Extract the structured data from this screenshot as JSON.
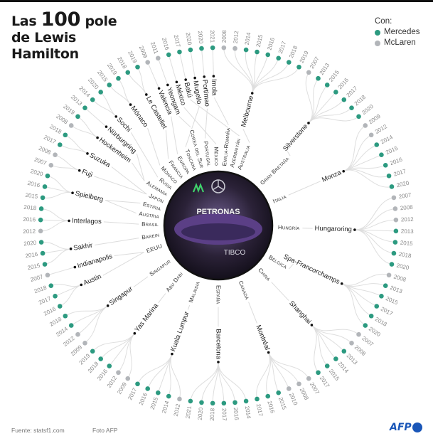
{
  "title": {
    "pre": "Las ",
    "number": "100",
    "post": " pole",
    "line2": "de Lewis",
    "line3": "Hamilton"
  },
  "legend": {
    "heading": "Con:",
    "items": [
      {
        "label": "Mercedes",
        "color": "#2c9a80"
      },
      {
        "label": "McLaren",
        "color": "#b2b5b9"
      }
    ]
  },
  "photo": {
    "sponsor1": "PETRONAS",
    "sponsor2": "TIBCO"
  },
  "footer": {
    "source": "Fuente: statsf1.com",
    "photo_credit": "Foto AFP",
    "logo": "AFP"
  },
  "circuits": [
    {
      "name": "Melbourne",
      "years": [
        {
          "y": "2008",
          "t": "McLaren"
        },
        {
          "y": "2012",
          "t": "McLaren"
        },
        {
          "y": "2014",
          "t": "Mercedes"
        },
        {
          "y": "2015",
          "t": "Mercedes"
        },
        {
          "y": "2016",
          "t": "Mercedes"
        },
        {
          "y": "2017",
          "t": "Mercedes"
        },
        {
          "y": "2018",
          "t": "Mercedes"
        },
        {
          "y": "2019",
          "t": "Mercedes"
        }
      ]
    },
    {
      "name": "Silverstone",
      "years": [
        {
          "y": "2007",
          "t": "McLaren"
        },
        {
          "y": "2013",
          "t": "Mercedes"
        },
        {
          "y": "2015",
          "t": "Mercedes"
        },
        {
          "y": "2016",
          "t": "Mercedes"
        },
        {
          "y": "2017",
          "t": "Mercedes"
        },
        {
          "y": "2018",
          "t": "Mercedes"
        },
        {
          "y": "2020",
          "t": "Mercedes"
        }
      ]
    },
    {
      "name": "Monza",
      "years": [
        {
          "y": "2009",
          "t": "McLaren"
        },
        {
          "y": "2012",
          "t": "McLaren"
        },
        {
          "y": "2014",
          "t": "Mercedes"
        },
        {
          "y": "2015",
          "t": "Mercedes"
        },
        {
          "y": "2016",
          "t": "Mercedes"
        },
        {
          "y": "2017",
          "t": "Mercedes"
        },
        {
          "y": "2020",
          "t": "Mercedes"
        }
      ]
    },
    {
      "name": "Hungaroring",
      "years": [
        {
          "y": "2007",
          "t": "McLaren"
        },
        {
          "y": "2008",
          "t": "McLaren"
        },
        {
          "y": "2012",
          "t": "McLaren"
        },
        {
          "y": "2013",
          "t": "Mercedes"
        },
        {
          "y": "2015",
          "t": "Mercedes"
        },
        {
          "y": "2018",
          "t": "Mercedes"
        },
        {
          "y": "2020",
          "t": "Mercedes"
        }
      ]
    },
    {
      "name": "Spa-Francorchamps",
      "years": [
        {
          "y": "2008",
          "t": "McLaren"
        },
        {
          "y": "2013",
          "t": "Mercedes"
        },
        {
          "y": "2015",
          "t": "Mercedes"
        },
        {
          "y": "2017",
          "t": "Mercedes"
        },
        {
          "y": "2018",
          "t": "Mercedes"
        },
        {
          "y": "2020",
          "t": "Mercedes"
        }
      ]
    },
    {
      "name": "Shanghai",
      "years": [
        {
          "y": "2007",
          "t": "McLaren"
        },
        {
          "y": "2008",
          "t": "McLaren"
        },
        {
          "y": "2013",
          "t": "Mercedes"
        },
        {
          "y": "2014",
          "t": "Mercedes"
        },
        {
          "y": "2015",
          "t": "Mercedes"
        },
        {
          "y": "2017",
          "t": "Mercedes"
        }
      ]
    },
    {
      "name": "Montréal",
      "years": [
        {
          "y": "2007",
          "t": "McLaren"
        },
        {
          "y": "2008",
          "t": "McLaren"
        },
        {
          "y": "2010",
          "t": "McLaren"
        },
        {
          "y": "2015",
          "t": "Mercedes"
        },
        {
          "y": "2016",
          "t": "Mercedes"
        },
        {
          "y": "2017",
          "t": "Mercedes"
        }
      ]
    },
    {
      "name": "Barcelona",
      "years": [
        {
          "y": "2014",
          "t": "Mercedes"
        },
        {
          "y": "2016",
          "t": "Mercedes"
        },
        {
          "y": "2017",
          "t": "Mercedes"
        },
        {
          "y": "2018",
          "t": "Mercedes"
        },
        {
          "y": "2020",
          "t": "Mercedes"
        },
        {
          "y": "2021",
          "t": "Mercedes"
        }
      ]
    },
    {
      "name": "Kuala Lumpur",
      "years": [
        {
          "y": "2012",
          "t": "McLaren"
        },
        {
          "y": "2014",
          "t": "Mercedes"
        },
        {
          "y": "2015",
          "t": "Mercedes"
        },
        {
          "y": "2016",
          "t": "Mercedes"
        },
        {
          "y": "2017",
          "t": "Mercedes"
        }
      ]
    },
    {
      "name": "Yas Marina",
      "years": [
        {
          "y": "2009",
          "t": "McLaren"
        },
        {
          "y": "2012",
          "t": "McLaren"
        },
        {
          "y": "2016",
          "t": "Mercedes"
        },
        {
          "y": "2018",
          "t": "Mercedes"
        },
        {
          "y": "2019",
          "t": "Mercedes"
        }
      ]
    },
    {
      "name": "Singapur",
      "years": [
        {
          "y": "2009",
          "t": "McLaren"
        },
        {
          "y": "2012",
          "t": "McLaren"
        },
        {
          "y": "2014",
          "t": "Mercedes"
        },
        {
          "y": "2018",
          "t": "Mercedes"
        }
      ]
    },
    {
      "name": "Austin",
      "years": [
        {
          "y": "2016",
          "t": "Mercedes"
        },
        {
          "y": "2017",
          "t": "Mercedes"
        },
        {
          "y": "2018",
          "t": "Mercedes"
        }
      ]
    },
    {
      "name": "Indianapolis",
      "years": [
        {
          "y": "2007",
          "t": "McLaren"
        }
      ]
    },
    {
      "name": "Sakhir",
      "years": [
        {
          "y": "2015",
          "t": "Mercedes"
        },
        {
          "y": "2016",
          "t": "Mercedes"
        },
        {
          "y": "2020",
          "t": "Mercedes"
        }
      ]
    },
    {
      "name": "Interlagos",
      "years": [
        {
          "y": "2012",
          "t": "McLaren"
        },
        {
          "y": "2016",
          "t": "Mercedes"
        },
        {
          "y": "2018",
          "t": "Mercedes"
        }
      ]
    },
    {
      "name": "Spielberg",
      "years": [
        {
          "y": "2015",
          "t": "Mercedes"
        },
        {
          "y": "2016",
          "t": "Mercedes"
        },
        {
          "y": "2020",
          "t": "Mercedes"
        }
      ]
    },
    {
      "name": "Fuji",
      "years": [
        {
          "y": "2007",
          "t": "McLaren"
        },
        {
          "y": "2008",
          "t": "McLaren"
        }
      ]
    },
    {
      "name": "Suzuka",
      "years": [
        {
          "y": "2017",
          "t": "Mercedes"
        },
        {
          "y": "2018",
          "t": "Mercedes"
        }
      ]
    },
    {
      "name": "Hockenheim",
      "years": [
        {
          "y": "2008",
          "t": "McLaren"
        },
        {
          "y": "2019",
          "t": "Mercedes"
        }
      ]
    },
    {
      "name": "Nürburgring",
      "years": [
        {
          "y": "2013",
          "t": "Mercedes"
        }
      ]
    },
    {
      "name": "Sochi",
      "years": [
        {
          "y": "2014",
          "t": "Mercedes"
        },
        {
          "y": "2020",
          "t": "Mercedes"
        }
      ]
    },
    {
      "name": "Mónaco",
      "years": [
        {
          "y": "2015",
          "t": "Mercedes"
        },
        {
          "y": "2019",
          "t": "Mercedes"
        }
      ]
    },
    {
      "name": "Le Castellet",
      "years": [
        {
          "y": "2018",
          "t": "Mercedes"
        },
        {
          "y": "2019",
          "t": "Mercedes"
        }
      ]
    },
    {
      "name": "Valencia",
      "years": [
        {
          "y": "2009",
          "t": "McLaren"
        }
      ]
    },
    {
      "name": "Yeongam",
      "years": [
        {
          "y": "2011",
          "t": "McLaren"
        }
      ]
    },
    {
      "name": "México",
      "years": [
        {
          "y": "2016",
          "t": "Mercedes"
        }
      ]
    },
    {
      "name": "Bakú",
      "years": [
        {
          "y": "2017",
          "t": "Mercedes"
        }
      ]
    },
    {
      "name": "Mugello",
      "years": [
        {
          "y": "2020",
          "t": "Mercedes"
        }
      ]
    },
    {
      "name": "Portimao",
      "years": [
        {
          "y": "2020",
          "t": "Mercedes"
        }
      ]
    },
    {
      "name": "Imola",
      "years": [
        {
          "y": "2021",
          "t": "Mercedes"
        }
      ]
    }
  ],
  "countries": [
    {
      "name": "Australia",
      "circuits": [
        0
      ]
    },
    {
      "name": "Gran Bretaña",
      "circuits": [
        1
      ]
    },
    {
      "name": "Italia",
      "circuits": [
        2
      ]
    },
    {
      "name": "Hungría",
      "circuits": [
        3
      ]
    },
    {
      "name": "Bélgica",
      "circuits": [
        4
      ]
    },
    {
      "name": "China",
      "circuits": [
        5
      ]
    },
    {
      "name": "Canadá",
      "circuits": [
        6
      ]
    },
    {
      "name": "España",
      "circuits": [
        7
      ]
    },
    {
      "name": "Malaisia",
      "circuits": [
        8
      ]
    },
    {
      "name": "Abu Dabi",
      "circuits": [
        9
      ]
    },
    {
      "name": "Singapur",
      "circuits": [
        10
      ]
    },
    {
      "name": "EEUU",
      "circuits": [
        11,
        12
      ]
    },
    {
      "name": "Barein",
      "circuits": [
        13
      ]
    },
    {
      "name": "Brasil",
      "circuits": [
        14
      ]
    },
    {
      "name": "Austria",
      "circuits": [
        15
      ]
    },
    {
      "name": "Estiria",
      "circuits": [
        15
      ]
    },
    {
      "name": "Japón",
      "circuits": [
        16,
        17
      ]
    },
    {
      "name": "Alemania",
      "circuits": [
        18,
        19
      ]
    },
    {
      "name": "Rusia",
      "circuits": [
        20
      ]
    },
    {
      "name": "Mónaco",
      "circuits": [
        21
      ]
    },
    {
      "name": "Francia",
      "circuits": [
        22
      ]
    },
    {
      "name": "Europa",
      "circuits": [
        23
      ]
    },
    {
      "name": "Corea del Sur",
      "circuits": [
        24
      ]
    },
    {
      "name": "México",
      "circuits": [
        25
      ]
    },
    {
      "name": "Azerbaiyán",
      "circuits": [
        26
      ]
    },
    {
      "name": "Toscana",
      "circuits": [
        27
      ]
    },
    {
      "name": "Portugal",
      "circuits": [
        28
      ]
    },
    {
      "name": "Emilia-Romaña",
      "circuits": [
        29
      ]
    }
  ]
}
